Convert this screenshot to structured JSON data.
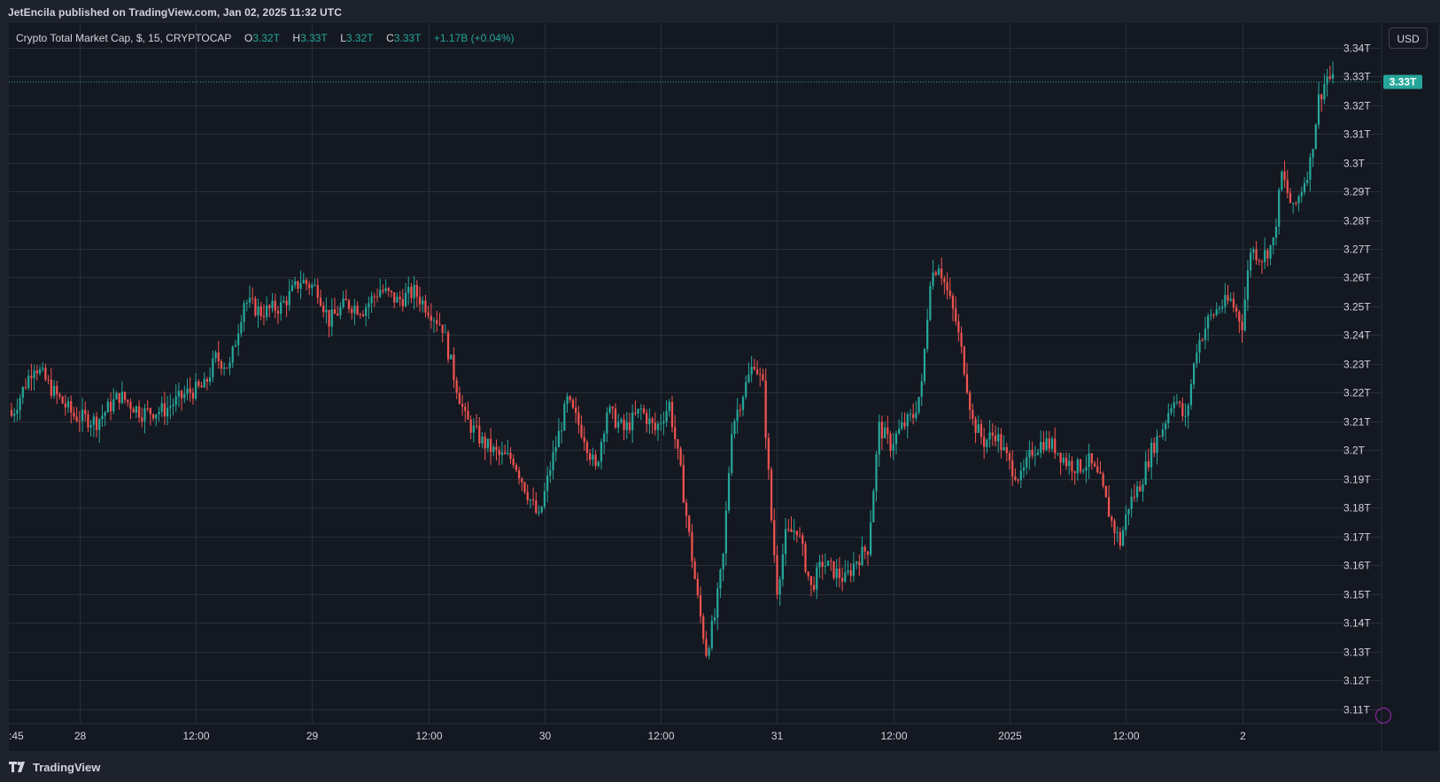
{
  "header": {
    "publisher_line": "JetEncila published on TradingView.com, Jan 02, 2025 11:32 UTC"
  },
  "legend": {
    "symbol": "Crypto Total Market Cap, $, 15, CRYPTOCAP",
    "o_label": "O",
    "o_value": "3.32T",
    "h_label": "H",
    "h_value": "3.33T",
    "l_label": "L",
    "l_value": "3.32T",
    "c_label": "C",
    "c_value": "3.33T",
    "change": "+1.17B (+0.04%)"
  },
  "currency_button": "USD",
  "branding": {
    "logo_text": "TradingView"
  },
  "colors": {
    "background": "#141821",
    "frame": "#1e222d",
    "up": "#26a69a",
    "down": "#ef5350",
    "grid": "#2a2e39",
    "text": "#d1d4dc",
    "price_label_bg": "#26a69a"
  },
  "chart_data": {
    "type": "candlestick",
    "interval": "15",
    "y_ticks": [
      "3.11T",
      "3.12T",
      "3.13T",
      "3.14T",
      "3.15T",
      "3.16T",
      "3.17T",
      "3.18T",
      "3.19T",
      "3.2T",
      "3.21T",
      "3.22T",
      "3.23T",
      "3.24T",
      "3.25T",
      "3.26T",
      "3.27T",
      "3.28T",
      "3.29T",
      "3.3T",
      "3.31T",
      "3.32T",
      "3.33T",
      "3.34T"
    ],
    "ylim": [
      3.105,
      3.3485
    ],
    "x_tick_labels": [
      ":45",
      "28",
      "12:00",
      "29",
      "12:00",
      "30",
      "12:00",
      "31",
      "12:00",
      "2025",
      "12:00",
      "2"
    ],
    "last_price_label": "3.33T",
    "last_price": 3.3282,
    "grid": true,
    "close_path": [
      {
        "i": 0,
        "v": 3.212
      },
      {
        "i": 8,
        "v": 3.23
      },
      {
        "i": 15,
        "v": 3.22
      },
      {
        "i": 22,
        "v": 3.212
      },
      {
        "i": 30,
        "v": 3.21
      },
      {
        "i": 38,
        "v": 3.219
      },
      {
        "i": 46,
        "v": 3.213
      },
      {
        "i": 54,
        "v": 3.214
      },
      {
        "i": 62,
        "v": 3.22
      },
      {
        "i": 68,
        "v": 3.222
      },
      {
        "i": 72,
        "v": 3.232
      },
      {
        "i": 77,
        "v": 3.229
      },
      {
        "i": 82,
        "v": 3.252
      },
      {
        "i": 88,
        "v": 3.248
      },
      {
        "i": 95,
        "v": 3.25
      },
      {
        "i": 102,
        "v": 3.259
      },
      {
        "i": 108,
        "v": 3.256
      },
      {
        "i": 112,
        "v": 3.245
      },
      {
        "i": 118,
        "v": 3.251
      },
      {
        "i": 124,
        "v": 3.249
      },
      {
        "i": 130,
        "v": 3.256
      },
      {
        "i": 136,
        "v": 3.252
      },
      {
        "i": 142,
        "v": 3.255
      },
      {
        "i": 148,
        "v": 3.248
      },
      {
        "i": 152,
        "v": 3.243
      },
      {
        "i": 156,
        "v": 3.226
      },
      {
        "i": 160,
        "v": 3.211
      },
      {
        "i": 166,
        "v": 3.203
      },
      {
        "i": 172,
        "v": 3.198
      },
      {
        "i": 177,
        "v": 3.197
      },
      {
        "i": 182,
        "v": 3.185
      },
      {
        "i": 186,
        "v": 3.176
      },
      {
        "i": 190,
        "v": 3.194
      },
      {
        "i": 196,
        "v": 3.217
      },
      {
        "i": 202,
        "v": 3.205
      },
      {
        "i": 206,
        "v": 3.193
      },
      {
        "i": 210,
        "v": 3.214
      },
      {
        "i": 216,
        "v": 3.207
      },
      {
        "i": 222,
        "v": 3.214
      },
      {
        "i": 227,
        "v": 3.207
      },
      {
        "i": 232,
        "v": 3.216
      },
      {
        "i": 236,
        "v": 3.192
      },
      {
        "i": 239,
        "v": 3.17
      },
      {
        "i": 242,
        "v": 3.148
      },
      {
        "i": 245,
        "v": 3.13
      },
      {
        "i": 248,
        "v": 3.142
      },
      {
        "i": 251,
        "v": 3.163
      },
      {
        "i": 254,
        "v": 3.208
      },
      {
        "i": 258,
        "v": 3.22
      },
      {
        "i": 262,
        "v": 3.231
      },
      {
        "i": 265,
        "v": 3.222
      },
      {
        "i": 268,
        "v": 3.176
      },
      {
        "i": 270,
        "v": 3.152
      },
      {
        "i": 273,
        "v": 3.17
      },
      {
        "i": 277,
        "v": 3.173
      },
      {
        "i": 282,
        "v": 3.152
      },
      {
        "i": 286,
        "v": 3.161
      },
      {
        "i": 290,
        "v": 3.158
      },
      {
        "i": 294,
        "v": 3.155
      },
      {
        "i": 298,
        "v": 3.162
      },
      {
        "i": 302,
        "v": 3.166
      },
      {
        "i": 306,
        "v": 3.208
      },
      {
        "i": 310,
        "v": 3.202
      },
      {
        "i": 314,
        "v": 3.208
      },
      {
        "i": 318,
        "v": 3.212
      },
      {
        "i": 321,
        "v": 3.222
      },
      {
        "i": 324,
        "v": 3.26
      },
      {
        "i": 327,
        "v": 3.265
      },
      {
        "i": 330,
        "v": 3.255
      },
      {
        "i": 333,
        "v": 3.245
      },
      {
        "i": 336,
        "v": 3.229
      },
      {
        "i": 339,
        "v": 3.21
      },
      {
        "i": 343,
        "v": 3.203
      },
      {
        "i": 347,
        "v": 3.206
      },
      {
        "i": 352,
        "v": 3.195
      },
      {
        "i": 356,
        "v": 3.19
      },
      {
        "i": 360,
        "v": 3.2
      },
      {
        "i": 364,
        "v": 3.203
      },
      {
        "i": 368,
        "v": 3.201
      },
      {
        "i": 372,
        "v": 3.196
      },
      {
        "i": 376,
        "v": 3.194
      },
      {
        "i": 380,
        "v": 3.196
      },
      {
        "i": 384,
        "v": 3.189
      },
      {
        "i": 388,
        "v": 3.175
      },
      {
        "i": 391,
        "v": 3.168
      },
      {
        "i": 394,
        "v": 3.181
      },
      {
        "i": 398,
        "v": 3.188
      },
      {
        "i": 402,
        "v": 3.2
      },
      {
        "i": 406,
        "v": 3.208
      },
      {
        "i": 410,
        "v": 3.219
      },
      {
        "i": 414,
        "v": 3.21
      },
      {
        "i": 418,
        "v": 3.236
      },
      {
        "i": 422,
        "v": 3.245
      },
      {
        "i": 426,
        "v": 3.25
      },
      {
        "i": 430,
        "v": 3.252
      },
      {
        "i": 434,
        "v": 3.244
      },
      {
        "i": 437,
        "v": 3.27
      },
      {
        "i": 441,
        "v": 3.267
      },
      {
        "i": 445,
        "v": 3.272
      },
      {
        "i": 448,
        "v": 3.296
      },
      {
        "i": 452,
        "v": 3.283
      },
      {
        "i": 455,
        "v": 3.291
      },
      {
        "i": 458,
        "v": 3.3
      },
      {
        "i": 461,
        "v": 3.322
      },
      {
        "i": 464,
        "v": 3.33
      },
      {
        "i": 466,
        "v": 3.3282
      }
    ]
  }
}
